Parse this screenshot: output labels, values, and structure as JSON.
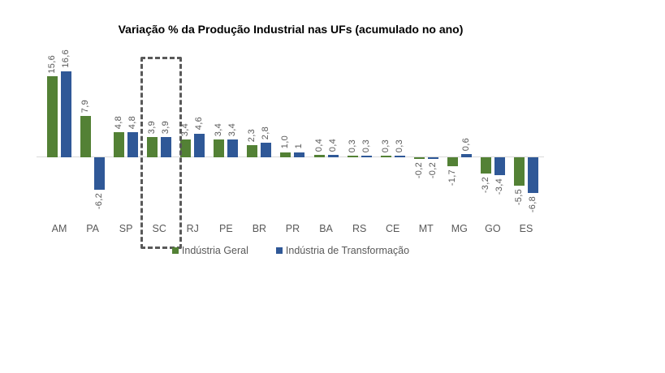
{
  "chart_data": {
    "type": "bar",
    "title": "Variação % da Produção Industrial nas UFs (acumulado no ano)",
    "categories": [
      "AM",
      "PA",
      "SP",
      "SC",
      "RJ",
      "PE",
      "BR",
      "PR",
      "BA",
      "RS",
      "CE",
      "MT",
      "MG",
      "GO",
      "ES"
    ],
    "series": [
      {
        "name": "Indústria Geral",
        "color": "#538135",
        "values": [
          15.6,
          7.9,
          4.8,
          3.9,
          3.4,
          3.4,
          2.3,
          1.0,
          0.4,
          0.3,
          0.3,
          -0.2,
          -1.7,
          -3.2,
          -5.5
        ],
        "labels": [
          "15,6",
          "7,9",
          "4,8",
          "3,9",
          "3,4",
          "3,4",
          "2,3",
          "1,0",
          "0,4",
          "0,3",
          "0,3",
          "-0,2",
          "-1,7",
          "-3,2",
          "-5,5"
        ]
      },
      {
        "name": "Indústria de Transformação",
        "color": "#2F5897",
        "values": [
          16.6,
          -6.2,
          4.8,
          3.9,
          4.6,
          3.4,
          2.8,
          1.0,
          0.4,
          0.3,
          0.3,
          -0.2,
          0.6,
          -3.4,
          -6.8
        ],
        "labels": [
          "16,6",
          "-6,2",
          "4,8",
          "3,9",
          "4,6",
          "3,4",
          "2,8",
          "1",
          "0,4",
          "0,3",
          "0,3",
          "-0,2",
          "0,6",
          "-3,4",
          "-6,8"
        ]
      }
    ],
    "highlighted_category": "SC",
    "legend_position": "bottom",
    "grid": false,
    "ylim": [
      -8,
      18
    ],
    "axis_line_color": "#d9d9d9",
    "label_color": "#595959",
    "value_labels_rotated": true
  }
}
